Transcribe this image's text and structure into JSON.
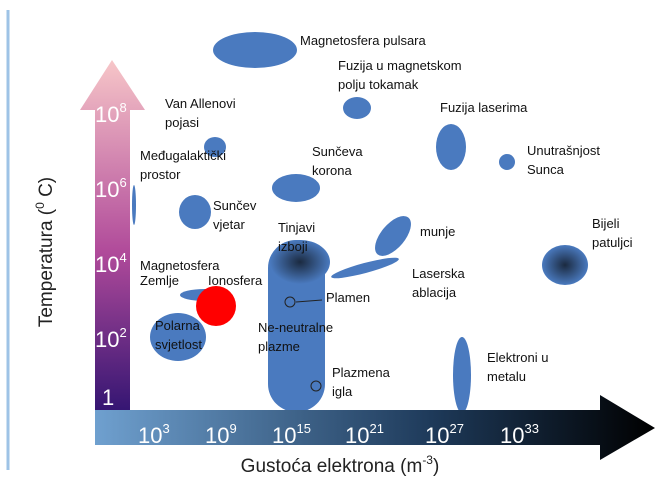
{
  "axes": {
    "y_label": {
      "text": "Temperatura (",
      "sup": "0",
      "tail": " C)"
    },
    "x_label": {
      "text": "Gustoća elektrona (m",
      "sup": "-3",
      "tail": ")"
    },
    "y_ticks": [
      {
        "base": "10",
        "exp": "8"
      },
      {
        "base": "10",
        "exp": "6"
      },
      {
        "base": "10",
        "exp": "4"
      },
      {
        "base": "10",
        "exp": "2"
      },
      {
        "base": "1"
      }
    ],
    "x_ticks": [
      {
        "base": "10",
        "exp": "3"
      },
      {
        "base": "10",
        "exp": "9"
      },
      {
        "base": "10",
        "exp": "15"
      },
      {
        "base": "10",
        "exp": "21"
      },
      {
        "base": "10",
        "exp": "27"
      },
      {
        "base": "10",
        "exp": "33"
      }
    ]
  },
  "regions": [
    {
      "lines": [
        "Magnetosfera pulsara"
      ]
    },
    {
      "lines": [
        "Fuzija u magnetskom",
        "polju tokamak"
      ]
    },
    {
      "lines": [
        "Van Allenovi",
        "pojasi"
      ]
    },
    {
      "lines": [
        "Fuzija laserima"
      ]
    },
    {
      "lines": [
        "Unutrašnjost",
        "Sunca"
      ]
    },
    {
      "lines": [
        "Međugalaktički",
        "prostor"
      ]
    },
    {
      "lines": [
        "Sunčeva",
        "korona"
      ]
    },
    {
      "lines": [
        "Sunčev",
        "vjetar"
      ]
    },
    {
      "lines": [
        "Tinjavi",
        "izboji"
      ]
    },
    {
      "lines": [
        "munje"
      ]
    },
    {
      "lines": [
        "Bijeli",
        "patuljci"
      ]
    },
    {
      "lines": [
        "Laserska",
        "ablacija"
      ]
    },
    {
      "lines": [
        "Magnetosfera",
        "Zemlje"
      ]
    },
    {
      "lines": [
        "Ionosfera"
      ]
    },
    {
      "lines": [
        "Plamen"
      ]
    },
    {
      "lines": [
        "Polarna",
        "svjetlost"
      ]
    },
    {
      "lines": [
        "Ne-neutralne",
        "plazme"
      ]
    },
    {
      "lines": [
        "Plazmena",
        "igla"
      ]
    },
    {
      "lines": [
        "Elektroni u",
        "metalu"
      ]
    }
  ]
}
